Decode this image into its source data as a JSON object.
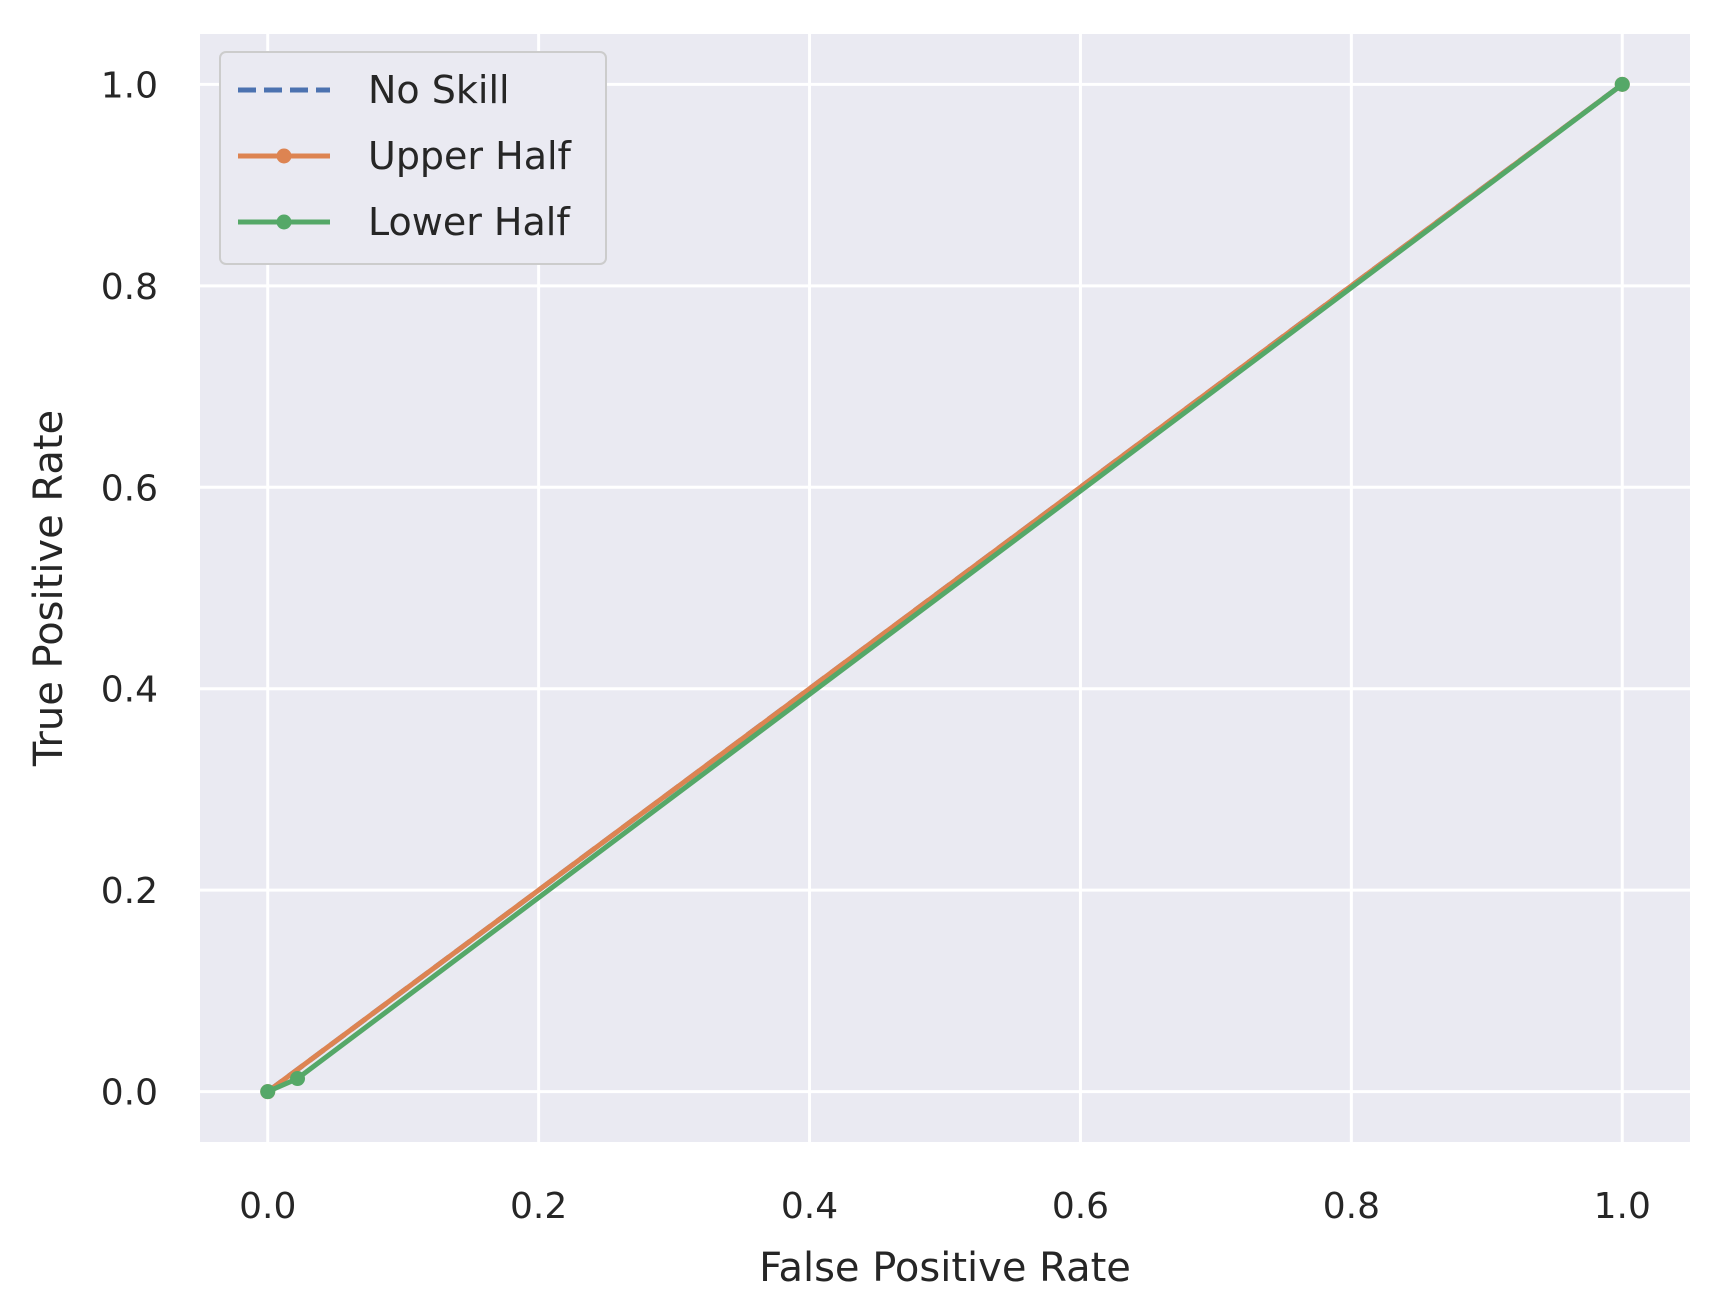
{
  "chart_data": {
    "type": "line",
    "xlabel": "False Positive Rate",
    "ylabel": "True Positive Rate",
    "xlim": [
      -0.05,
      1.05
    ],
    "ylim": [
      -0.05,
      1.05
    ],
    "x_ticks": [
      "0.0",
      "0.2",
      "0.4",
      "0.6",
      "0.8",
      "1.0"
    ],
    "y_ticks": [
      "0.0",
      "0.2",
      "0.4",
      "0.6",
      "0.8",
      "1.0"
    ],
    "grid": true,
    "legend_position": "top-left",
    "background_color": "#eaeaf2",
    "series": [
      {
        "name": "No Skill",
        "style": "dashed",
        "markers": false,
        "color": "#4c72b0",
        "x": [
          0,
          1
        ],
        "y": [
          0,
          1
        ]
      },
      {
        "name": "Upper Half",
        "style": "solid",
        "markers": true,
        "color": "#dd8452",
        "x": [
          0,
          1
        ],
        "y": [
          0,
          1
        ]
      },
      {
        "name": "Lower Half",
        "style": "solid",
        "markers": true,
        "color": "#55a868",
        "x": [
          0,
          0.022,
          1
        ],
        "y": [
          0,
          0.013,
          1
        ]
      }
    ]
  }
}
